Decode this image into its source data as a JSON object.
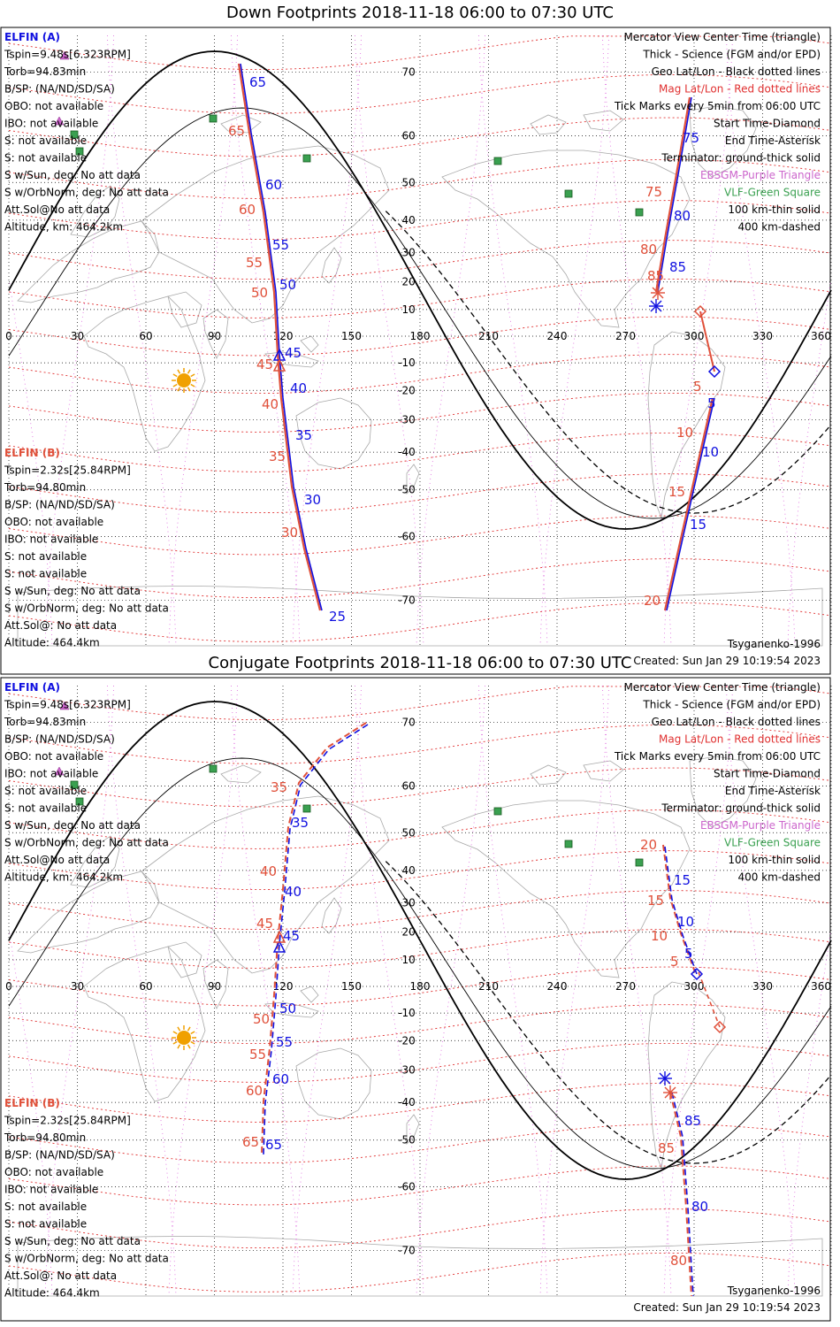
{
  "colors": {
    "science_a": "#1010e0",
    "science_b": "#e0503a",
    "mag_lines": "#e03030",
    "geo_lines": "#000000",
    "ebsgm": "#cc66cc",
    "vlf": "#3aa050",
    "sun": "#f0a000",
    "coast": "#a8a8a8"
  },
  "panels": [
    {
      "id": "down",
      "title": "Down Footprints 2018-11-18 06:00 to 07:30 UTC",
      "elfin_a": {
        "header": "ELFIN (A)",
        "lines": [
          "Tspin=9.48s[6.323RPM]",
          "Torb=94.83min",
          "B/SP: (NA/ND/SD/SA)",
          "OBO: not available",
          "IBO: not available",
          "S: not available",
          "S: not available",
          "S w/Sun, deg: No att data",
          "S w/OrbNorm, deg: No att data",
          "Att.Sol@No att data",
          "Altitude, km: 464.2km"
        ]
      },
      "elfin_b": {
        "header": "ELFIN (B)",
        "lines": [
          "Tspin=2.32s[25.84RPM]",
          "Torb=94.80min",
          "B/SP: (NA/ND/SD/SA)",
          "OBO: not available",
          "IBO: not available",
          "S: not available",
          "S: not available",
          "S w/Sun, deg: No att data",
          "S w/OrbNorm, deg: No att data",
          "Att.Sol@: No att data",
          "Altitude: 464.4km"
        ]
      },
      "legend": [
        "Mercator View Center Time (triangle)",
        "Thick - Science (FGM and/or EPD)",
        "Geo Lat/Lon - Black dotted lines",
        "Mag Lat/Lon - Red dotted lines",
        "Tick Marks every 5min from 06:00 UTC",
        "Start Time-Diamond",
        "End Time-Asterisk",
        "Terminator: ground-thick solid",
        "EBSGM-Purple Triangle",
        "VLF-Green Square",
        "100 km-thin solid",
        "400 km-dashed"
      ],
      "model": "Tsyganenko-1996",
      "created": "Created: Sun Jan 29 10:19:54 2023",
      "x_ticks": [
        "0",
        "30",
        "60",
        "90",
        "120",
        "150",
        "180",
        "210",
        "240",
        "270",
        "300",
        "330",
        "360"
      ],
      "y_ticks": [
        "70",
        "60",
        "50",
        "40",
        "30",
        "20",
        "10",
        "-10",
        "-20",
        "-30",
        "-40",
        "-50",
        "-60",
        "-70"
      ],
      "mark_labels_a": [
        "65",
        "60",
        "55",
        "50",
        "45",
        "40",
        "35",
        "30",
        "25",
        "75",
        "80",
        "85",
        "5",
        "10",
        "15"
      ],
      "mark_labels_b": [
        "65",
        "60",
        "55",
        "50",
        "45",
        "40",
        "35",
        "30",
        "75",
        "80",
        "85",
        "5",
        "10",
        "15",
        "20"
      ]
    },
    {
      "id": "conjugate",
      "title": "Conjugate Footprints 2018-11-18 06:00 to 07:30 UTC",
      "elfin_a": {
        "header": "ELFIN (A)",
        "lines": [
          "Tspin=9.48s[6.323RPM]",
          "Torb=94.83min",
          "B/SP: (NA/ND/SD/SA)",
          "OBO: not available",
          "IBO: not available",
          "S: not available",
          "S: not available",
          "S w/Sun, deg: No att data",
          "S w/OrbNorm, deg: No att data",
          "Att.Sol@No att data",
          "Altitude, km: 464.2km"
        ]
      },
      "elfin_b": {
        "header": "ELFIN (B)",
        "lines": [
          "Tspin=2.32s[25.84RPM]",
          "Torb=94.80min",
          "B/SP: (NA/ND/SD/SA)",
          "OBO: not available",
          "IBO: not available",
          "S: not available",
          "S: not available",
          "S w/Sun, deg: No att data",
          "S w/OrbNorm, deg: No att data",
          "Att.Sol@: No att data",
          "Altitude: 464.4km"
        ]
      },
      "legend": [
        "Mercator View Center Time (triangle)",
        "Thick - Science (FGM and/or EPD)",
        "Geo Lat/Lon - Black dotted lines",
        "Mag Lat/Lon - Red dotted lines",
        "Tick Marks every 5min from 06:00 UTC",
        "Start Time-Diamond",
        "End Time-Asterisk",
        "Terminator: ground-thick solid",
        "EBSGM-Purple Triangle",
        "VLF-Green Square",
        "100 km-thin solid",
        "400 km-dashed"
      ],
      "model": "Tsyganenko-1996",
      "created": "Created: Sun Jan 29 10:19:54 2023",
      "x_ticks": [
        "0",
        "30",
        "60",
        "90",
        "120",
        "150",
        "180",
        "210",
        "240",
        "270",
        "300",
        "330",
        "360"
      ],
      "y_ticks": [
        "70",
        "60",
        "50",
        "40",
        "30",
        "20",
        "10",
        "-10",
        "-20",
        "-30",
        "-40",
        "-50",
        "-60",
        "-70"
      ],
      "mark_labels_a": [
        "35",
        "40",
        "45",
        "50",
        "55",
        "60",
        "65",
        "15",
        "10",
        "5",
        "85",
        "80"
      ],
      "mark_labels_b": [
        "35",
        "40",
        "45",
        "50",
        "55",
        "60",
        "65",
        "20",
        "15",
        "10",
        "5",
        "85",
        "80"
      ]
    }
  ],
  "chart_data": [
    {
      "type": "scatter",
      "title": "Down Footprints 2018-11-18 06:00 to 07:30 UTC",
      "xlabel": "",
      "ylabel": "",
      "xlim": [
        0,
        360
      ],
      "ylim": [
        -80,
        80
      ],
      "grid": true,
      "series": [
        {
          "name": "ELFIN (A)",
          "x": [
            100,
            109,
            112,
            113,
            115,
            117,
            120,
            123,
            127,
            287,
            285,
            306,
            302,
            298,
            294
          ],
          "y": [
            73,
            64,
            55,
            48,
            40,
            32,
            18,
            -10,
            -24,
            71,
            60,
            49,
            -22,
            -43,
            -63
          ]
        },
        {
          "name": "ELFIN (B)",
          "x": [
            101,
            109,
            112,
            113,
            115,
            117,
            120,
            123,
            129,
            286,
            284,
            307,
            303,
            299,
            294
          ],
          "y": [
            73,
            64,
            55,
            48,
            40,
            32,
            18,
            -10,
            -24,
            71,
            60,
            49,
            -22,
            -43,
            -64
          ]
        }
      ]
    },
    {
      "type": "scatter",
      "title": "Conjugate Footprints 2018-11-18 06:00 to 07:30 UTC",
      "xlabel": "",
      "ylabel": "",
      "xlim": [
        0,
        360
      ],
      "ylim": [
        -80,
        80
      ],
      "grid": true,
      "series": [
        {
          "name": "ELFIN (A)",
          "x": [
            130,
            123,
            119,
            117,
            115,
            113,
            111,
            293,
            299,
            302,
            294,
            299
          ],
          "y": [
            68,
            58,
            46,
            28,
            10,
            -8,
            -28,
            42,
            34,
            10,
            -45,
            -67
          ]
        },
        {
          "name": "ELFIN (B)",
          "x": [
            131,
            124,
            119,
            117,
            115,
            113,
            111,
            288,
            293,
            299,
            312,
            292,
            298
          ],
          "y": [
            68,
            58,
            46,
            28,
            10,
            -8,
            -28,
            49,
            42,
            34,
            -10,
            -48,
            -70
          ]
        }
      ]
    }
  ]
}
